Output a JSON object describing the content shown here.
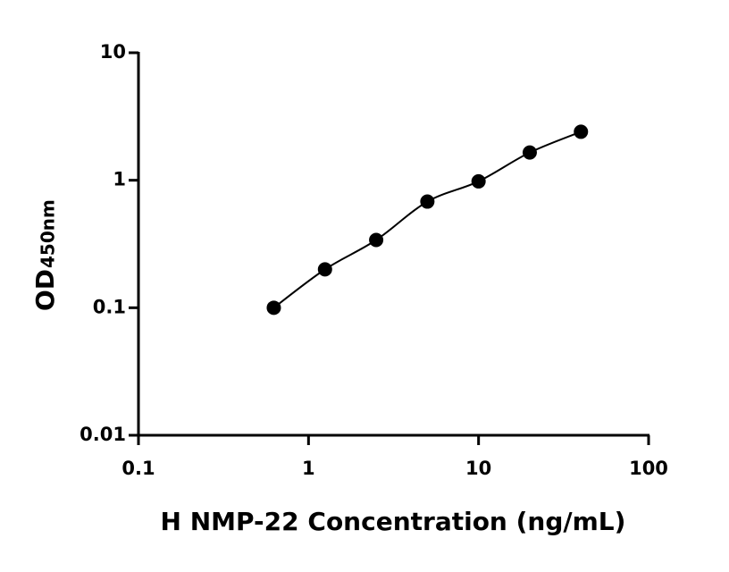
{
  "chart_data": {
    "type": "scatter",
    "xlabel": "H NMP-22 Concentration (ng/mL)",
    "ylabel": "OD",
    "ylabel_subscript": "450nm",
    "x": [
      0.625,
      1.25,
      2.5,
      5,
      10,
      20,
      40
    ],
    "values": [
      0.1,
      0.2,
      0.34,
      0.68,
      0.98,
      1.65,
      2.4
    ],
    "color": "#000000",
    "fit_line": true,
    "xscale": "log",
    "yscale": "log",
    "xlim": [
      0.1,
      100
    ],
    "xticks": [
      0.1,
      1,
      10,
      100
    ],
    "ylim": [
      0.01,
      10
    ],
    "yticks": [
      0.01,
      0.1,
      1,
      10
    ]
  }
}
